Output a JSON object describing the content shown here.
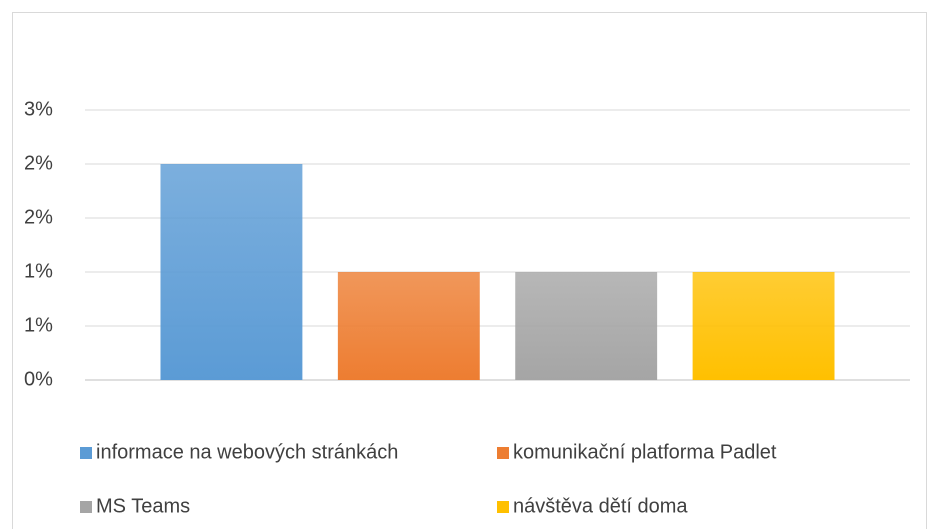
{
  "chart_data": {
    "type": "bar",
    "categories": [
      null
    ],
    "series": [
      {
        "name": "informace na webových stránkách",
        "color": "#5b9bd5",
        "values": [
          2
        ]
      },
      {
        "name": "komunikační platforma Padlet",
        "color": "#ed7d31",
        "values": [
          1
        ]
      },
      {
        "name": "MS Teams",
        "color": "#a5a5a5",
        "values": [
          1
        ]
      },
      {
        "name": "návštěva dětí doma",
        "color": "#ffc000",
        "values": [
          1
        ]
      }
    ],
    "ylim": [
      0,
      2.5
    ],
    "yticks": [
      {
        "value": 0,
        "label": "0%"
      },
      {
        "value": 0.5,
        "label": "1%"
      },
      {
        "value": 1,
        "label": "1%"
      },
      {
        "value": 1.5,
        "label": "2%"
      },
      {
        "value": 2,
        "label": "2%"
      },
      {
        "value": 2.5,
        "label": "3%"
      }
    ],
    "grid": true,
    "legend": "bottom"
  }
}
